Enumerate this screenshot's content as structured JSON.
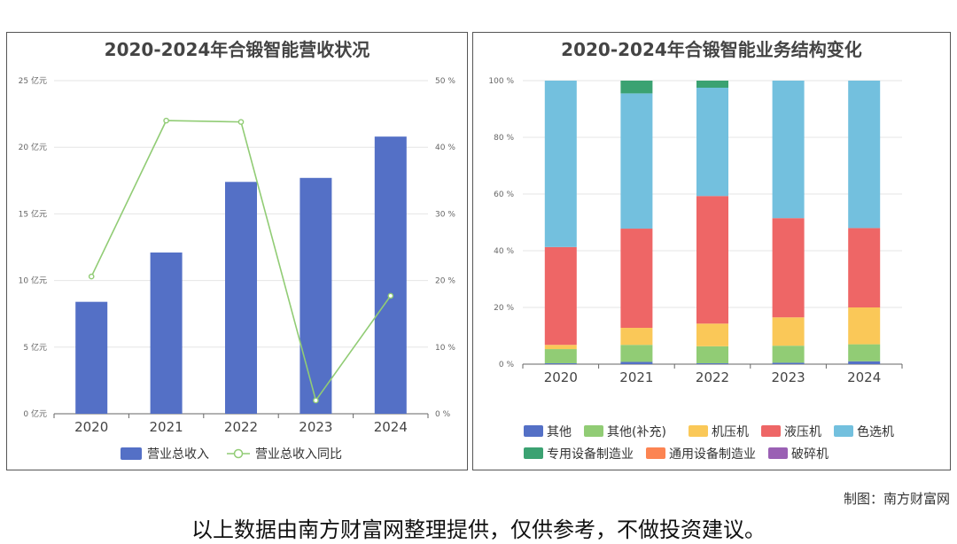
{
  "credit": "制图：南方财富网",
  "disclaimer": "以上数据由南方财富网整理提供，仅供参考，不做投资建议。",
  "chart_data": [
    {
      "type": "bar",
      "title": "2020-2024年合锻智能营收状况",
      "categories": [
        "2020",
        "2021",
        "2022",
        "2023",
        "2024"
      ],
      "series": [
        {
          "name": "营业总收入",
          "type": "bar",
          "axis": "left",
          "color": "#5470c6",
          "values": [
            8.4,
            12.1,
            17.4,
            17.7,
            20.8
          ]
        },
        {
          "name": "营业总收入同比",
          "type": "line",
          "axis": "right",
          "color": "#91cc75",
          "values": [
            20.6,
            44.0,
            43.8,
            2.0,
            17.7
          ]
        }
      ],
      "y_left": {
        "min": 0,
        "max": 25,
        "ticks": [
          0,
          5,
          10,
          15,
          20,
          25
        ],
        "tick_labels": [
          "0 亿元",
          "5 亿元",
          "10 亿元",
          "15 亿元",
          "20 亿元",
          "25 亿元"
        ]
      },
      "y_right": {
        "min": 0,
        "max": 50,
        "ticks": [
          0,
          10,
          20,
          30,
          40,
          50
        ],
        "tick_labels": [
          "0 %",
          "10 %",
          "20 %",
          "30 %",
          "40 %",
          "50 %"
        ]
      },
      "legend": "bottom"
    },
    {
      "type": "bar",
      "stacked": true,
      "title": "2020-2024年合锻智能业务结构变化",
      "categories": [
        "2020",
        "2021",
        "2022",
        "2023",
        "2024"
      ],
      "series": [
        {
          "name": "其他",
          "color": "#5470c6",
          "values": [
            0.3,
            0.8,
            0.3,
            0.5,
            1.0
          ]
        },
        {
          "name": "其他(补充)",
          "color": "#91cc75",
          "values": [
            5.0,
            6.0,
            6.0,
            6.0,
            6.0
          ]
        },
        {
          "name": "机压机",
          "color": "#fac858",
          "values": [
            1.5,
            6.0,
            8.0,
            10.0,
            13.0
          ]
        },
        {
          "name": "液压机",
          "color": "#ee6666",
          "values": [
            34.5,
            35.0,
            45.0,
            35.0,
            28.0
          ]
        },
        {
          "name": "色选机",
          "color": "#73c0de",
          "values": [
            58.7,
            47.7,
            38.2,
            48.5,
            52.0
          ]
        },
        {
          "name": "专用设备制造业",
          "color": "#3ba272",
          "values": [
            0,
            4.5,
            2.5,
            0,
            0
          ]
        },
        {
          "name": "通用设备制造业",
          "color": "#fc8452",
          "values": [
            0,
            0,
            0,
            0,
            0
          ]
        },
        {
          "name": "破碎机",
          "color": "#9a60b4",
          "values": [
            0,
            0,
            0,
            0,
            0
          ]
        }
      ],
      "y": {
        "min": 0,
        "max": 100,
        "ticks": [
          0,
          20,
          40,
          60,
          80,
          100
        ],
        "tick_labels": [
          "0 %",
          "20 %",
          "40 %",
          "60 %",
          "80 %",
          "100 %"
        ]
      },
      "legend": "bottom"
    }
  ]
}
